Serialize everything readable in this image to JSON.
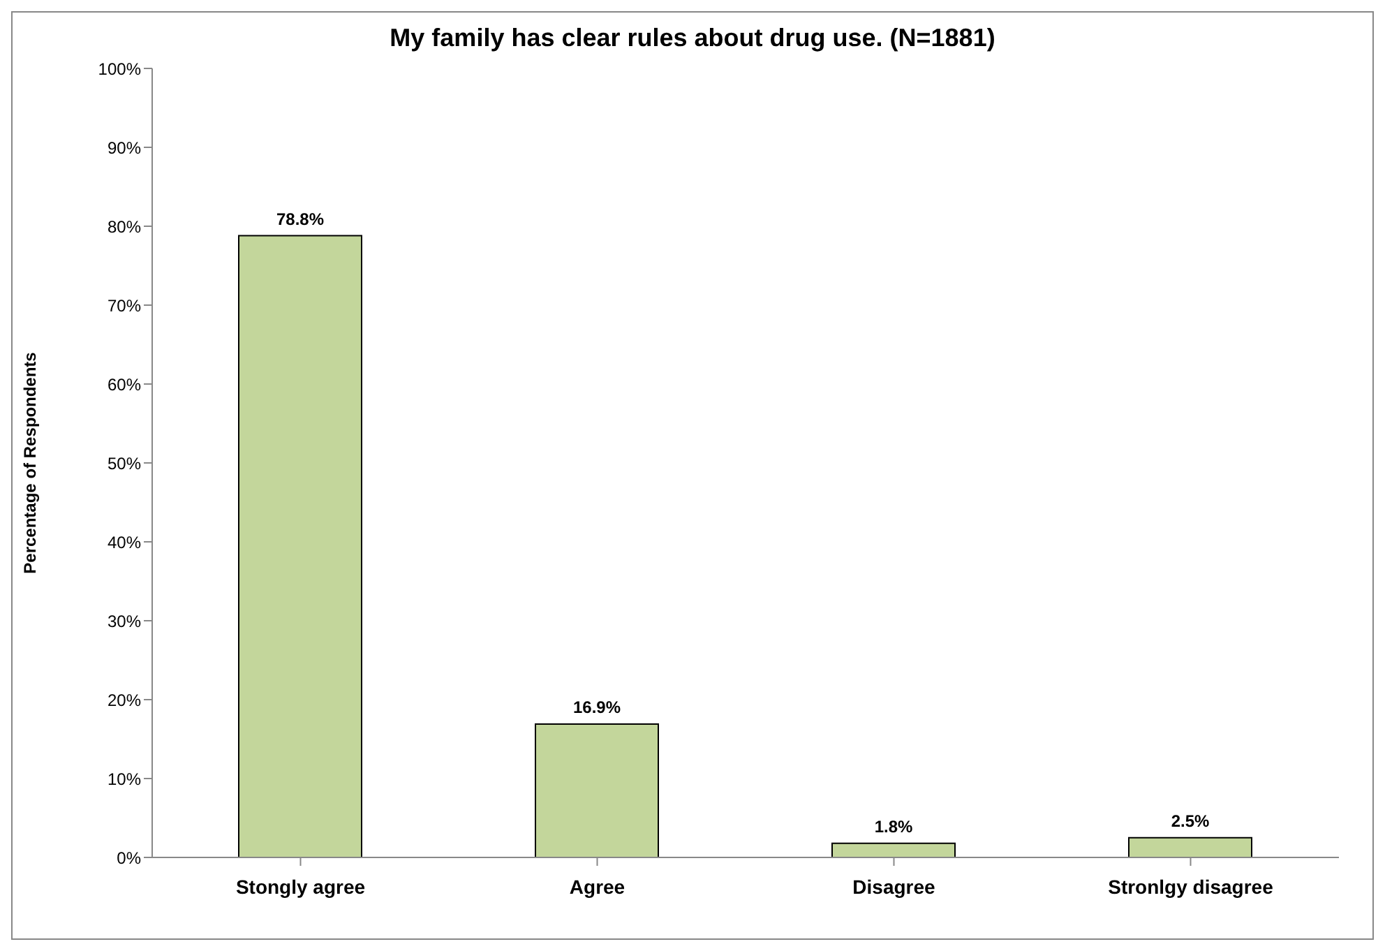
{
  "chart_data": {
    "type": "bar",
    "title": "My family has clear rules about drug use. (N=1881)",
    "ylabel": "Percentage of Respondents",
    "categories": [
      "Stongly agree",
      "Agree",
      "Disagree",
      "Stronlgy disagree"
    ],
    "values": [
      78.8,
      16.9,
      1.8,
      2.5
    ],
    "value_labels": [
      "78.8%",
      "16.9%",
      "1.8%",
      "2.5%"
    ],
    "color": "#c3d69b",
    "ylim": [
      0,
      100
    ],
    "yticks": [
      {
        "value": 0,
        "label": "0%"
      },
      {
        "value": 10,
        "label": "10%"
      },
      {
        "value": 20,
        "label": "20%"
      },
      {
        "value": 30,
        "label": "30%"
      },
      {
        "value": 40,
        "label": "40%"
      },
      {
        "value": 50,
        "label": "50%"
      },
      {
        "value": 60,
        "label": "60%"
      },
      {
        "value": 70,
        "label": "70%"
      },
      {
        "value": 80,
        "label": "80%"
      },
      {
        "value": 90,
        "label": "90%"
      },
      {
        "value": 100,
        "label": "100%"
      }
    ],
    "grid": false,
    "legend": false
  }
}
